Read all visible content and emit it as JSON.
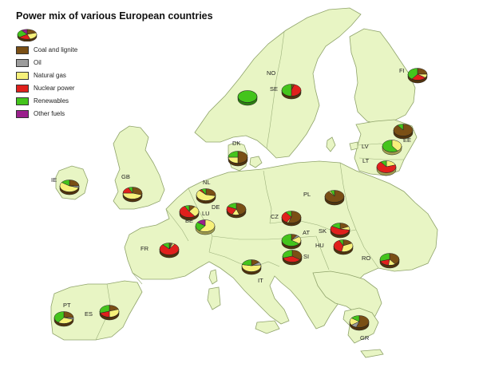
{
  "title": "Power mix of various European countries",
  "legend": [
    {
      "label": "Coal and lignite",
      "color": "#7a4f15"
    },
    {
      "label": "Oil",
      "color": "#9c9c9c"
    },
    {
      "label": "Natural gas",
      "color": "#f6f07a"
    },
    {
      "label": "Nuclear power",
      "color": "#e0201c"
    },
    {
      "label": "Renewables",
      "color": "#44c41c"
    },
    {
      "label": "Other fuels",
      "color": "#9a1f8c"
    }
  ],
  "fuel_order": [
    "coal",
    "oil",
    "gas",
    "nuclear",
    "renewables",
    "other"
  ],
  "colors": {
    "coal": "#7a4f15",
    "oil": "#9c9c9c",
    "gas": "#f6f07a",
    "nuclear": "#e0201c",
    "renewables": "#44c41c",
    "other": "#9a1f8c",
    "land": "#e8f5c4",
    "sea": "#ffffff"
  },
  "countries": [
    {
      "code": "NO",
      "mix": {
        "renewables": 1.0
      }
    },
    {
      "code": "SE",
      "mix": {
        "nuclear": 0.45,
        "renewables": 0.5,
        "coal": 0.05
      }
    },
    {
      "code": "FI",
      "mix": {
        "coal": 0.25,
        "gas": 0.1,
        "nuclear": 0.25,
        "renewables": 0.4
      }
    },
    {
      "code": "EE",
      "mix": {
        "coal": 0.9,
        "renewables": 0.1
      }
    },
    {
      "code": "LV",
      "mix": {
        "gas": 0.4,
        "renewables": 0.6
      }
    },
    {
      "code": "LT",
      "mix": {
        "gas": 0.2,
        "nuclear": 0.7,
        "renewables": 0.1
      }
    },
    {
      "code": "DK",
      "mix": {
        "coal": 0.5,
        "gas": 0.25,
        "renewables": 0.25
      }
    },
    {
      "code": "IE",
      "mix": {
        "gas": 0.55,
        "coal": 0.25,
        "renewables": 0.15,
        "oil": 0.05
      }
    },
    {
      "code": "GB",
      "mix": {
        "gas": 0.45,
        "coal": 0.3,
        "nuclear": 0.18,
        "renewables": 0.07
      }
    },
    {
      "code": "NL",
      "mix": {
        "gas": 0.6,
        "coal": 0.28,
        "nuclear": 0.04,
        "renewables": 0.08
      }
    },
    {
      "code": "BE",
      "mix": {
        "nuclear": 0.52,
        "gas": 0.3,
        "coal": 0.1,
        "renewables": 0.08
      }
    },
    {
      "code": "LU",
      "mix": {
        "gas": 0.6,
        "renewables": 0.25,
        "other": 0.15
      }
    },
    {
      "code": "DE",
      "mix": {
        "coal": 0.45,
        "nuclear": 0.25,
        "gas": 0.12,
        "renewables": 0.18
      }
    },
    {
      "code": "PL",
      "mix": {
        "coal": 0.9,
        "gas": 0.03,
        "renewables": 0.07
      }
    },
    {
      "code": "CZ",
      "mix": {
        "coal": 0.55,
        "nuclear": 0.32,
        "gas": 0.03,
        "renewables": 0.1
      }
    },
    {
      "code": "SK",
      "mix": {
        "nuclear": 0.55,
        "coal": 0.18,
        "gas": 0.1,
        "renewables": 0.17
      }
    },
    {
      "code": "AT",
      "mix": {
        "renewables": 0.65,
        "gas": 0.2,
        "coal": 0.1,
        "oil": 0.05
      }
    },
    {
      "code": "HU",
      "mix": {
        "nuclear": 0.4,
        "gas": 0.35,
        "coal": 0.18,
        "renewables": 0.07
      }
    },
    {
      "code": "SI",
      "mix": {
        "coal": 0.35,
        "nuclear": 0.35,
        "renewables": 0.3
      }
    },
    {
      "code": "RO",
      "mix": {
        "coal": 0.4,
        "nuclear": 0.18,
        "gas": 0.12,
        "renewables": 0.3
      }
    },
    {
      "code": "FR",
      "mix": {
        "nuclear": 0.78,
        "renewables": 0.12,
        "gas": 0.04,
        "coal": 0.04,
        "oil": 0.02
      }
    },
    {
      "code": "IT",
      "mix": {
        "gas": 0.55,
        "coal": 0.15,
        "oil": 0.08,
        "renewables": 0.22
      }
    },
    {
      "code": "PT",
      "mix": {
        "gas": 0.3,
        "coal": 0.25,
        "renewables": 0.4,
        "oil": 0.05
      }
    },
    {
      "code": "ES",
      "mix": {
        "gas": 0.3,
        "nuclear": 0.2,
        "coal": 0.2,
        "renewables": 0.3
      }
    },
    {
      "code": "GR",
      "mix": {
        "coal": 0.55,
        "gas": 0.2,
        "oil": 0.1,
        "renewables": 0.15
      }
    }
  ]
}
